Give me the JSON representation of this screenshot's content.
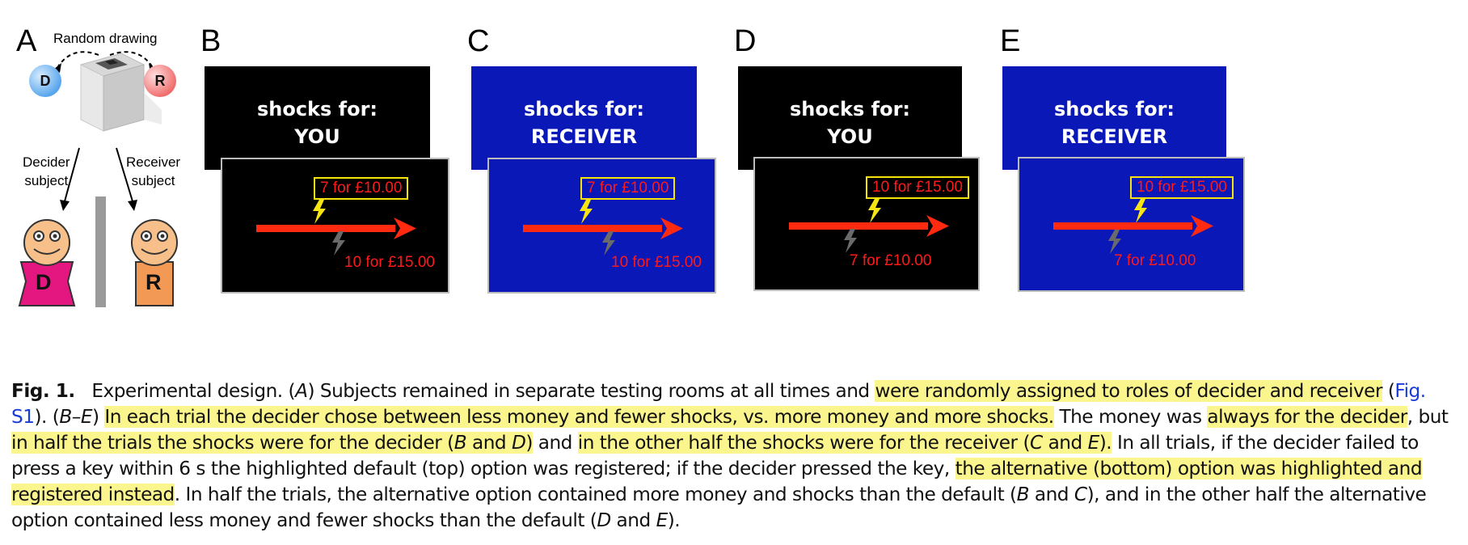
{
  "panel_letters": [
    "A",
    "B",
    "C",
    "D",
    "E"
  ],
  "panel_a": {
    "random_drawing": "Random drawing",
    "decider_circle": "D",
    "receiver_circle": "R",
    "decider_label_1": "Decider",
    "decider_label_2": "subject",
    "receiver_label_1": "Receiver",
    "receiver_label_2": "subject",
    "decider_shirt": "D",
    "receiver_shirt": "R"
  },
  "panels": [
    {
      "title_1": "shocks for:",
      "title_2": "YOU",
      "top_option": "7 for £10.00",
      "bottom_option": "10 for £15.00"
    },
    {
      "title_1": "shocks for:",
      "title_2": "RECEIVER",
      "top_option": "7 for £10.00",
      "bottom_option": "10 for £15.00"
    },
    {
      "title_1": "shocks for:",
      "title_2": "YOU",
      "top_option": "10 for £15.00",
      "bottom_option": "7 for £10.00"
    },
    {
      "title_1": "shocks for:",
      "title_2": "RECEIVER",
      "top_option": "10 for £15.00",
      "bottom_option": "7 for £10.00"
    }
  ],
  "colors": {
    "screen_black": "#000000",
    "screen_blue": "#0b18b8",
    "arrow_red": "#ff2a10",
    "option_text": "#ff1a1a",
    "box_yellow": "#f4e40a",
    "highlight": "#fbf58e",
    "link_blue": "#1a3cd6",
    "decider_pink": "#e3177f",
    "receiver_orange": "#f29a55"
  },
  "caption": {
    "fig_number": "Fig. 1.",
    "t1": "Experimental design. (",
    "t1_it": "A",
    "t2": ") Subjects remained in separate testing rooms at all times and ",
    "h1": "were randomly assigned to roles of decider and receiver",
    "t3": " (",
    "link": "Fig. S1",
    "t4": "). (",
    "t4_it": "B–E",
    "t5": ") ",
    "h2": "In each trial the decider chose between less money and fewer shocks, vs. more money and more shocks.",
    "t6": " The money was ",
    "h3": "always for the decider",
    "t7": ", but ",
    "h4a": "in half the trials the shocks were for the decider (",
    "h4_it1": "B",
    "h4b": " and ",
    "h4_it2": "D",
    "h4c": ")",
    "t8": " and ",
    "h5a": "in the other half the shocks were for the receiver (",
    "h5_it1": "C",
    "h5b": " and ",
    "h5_it2": "E",
    "h5c": ").",
    "t9": " In all trials, if the decider failed to press a key within 6 s the highlighted default (top) option was registered; if the decider pressed the key, ",
    "h6": "the alternative (bottom) option was highlighted and registered instead",
    "t10": ". In half the trials, the alternative option contained more money and shocks than the default (",
    "t10_it1": "B",
    "t11": " and ",
    "t11_it": "C",
    "t12": "), and in the other half the alternative option contained less money and fewer shocks than the default (",
    "t12_it1": "D",
    "t13": " and ",
    "t13_it": "E",
    "t14": ")."
  }
}
